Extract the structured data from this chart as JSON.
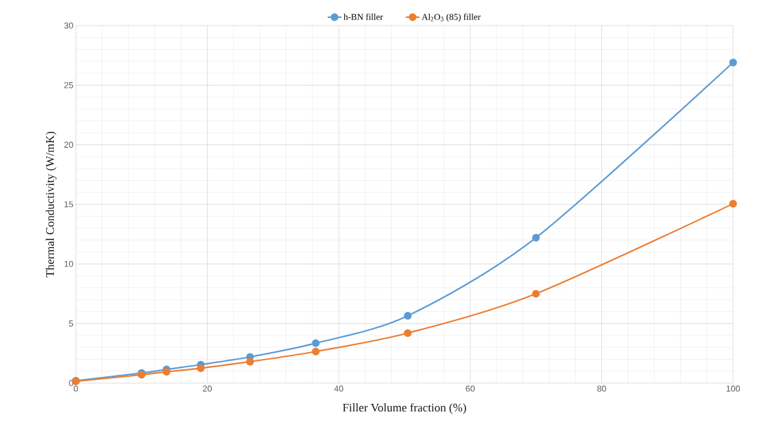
{
  "chart_data": {
    "type": "line",
    "xlabel": "Filler Volume fraction (%)",
    "ylabel": "Thermal Conductivity (W/mK)",
    "x": [
      0,
      10,
      13.8,
      19,
      26.5,
      36.5,
      50.5,
      70,
      100
    ],
    "series": [
      {
        "name": "h-BN filler",
        "color": "#5b9bd5",
        "values": [
          0.2,
          0.85,
          1.15,
          1.55,
          2.2,
          3.35,
          5.65,
          12.2,
          26.9
        ]
      },
      {
        "name": "Al$_{2}$O$_{3}$ (85) filler",
        "color": "#ed7d31",
        "values": [
          0.15,
          0.7,
          0.95,
          1.25,
          1.8,
          2.65,
          4.2,
          7.5,
          15.05
        ]
      }
    ],
    "xlim": [
      0,
      100
    ],
    "ylim": [
      0,
      30
    ],
    "xticks": [
      0,
      20,
      40,
      60,
      80,
      100
    ],
    "yticks": [
      0,
      5,
      10,
      15,
      20,
      25,
      30
    ],
    "grid": true,
    "legend": "top",
    "marker": "circle",
    "line_style": "solid"
  }
}
